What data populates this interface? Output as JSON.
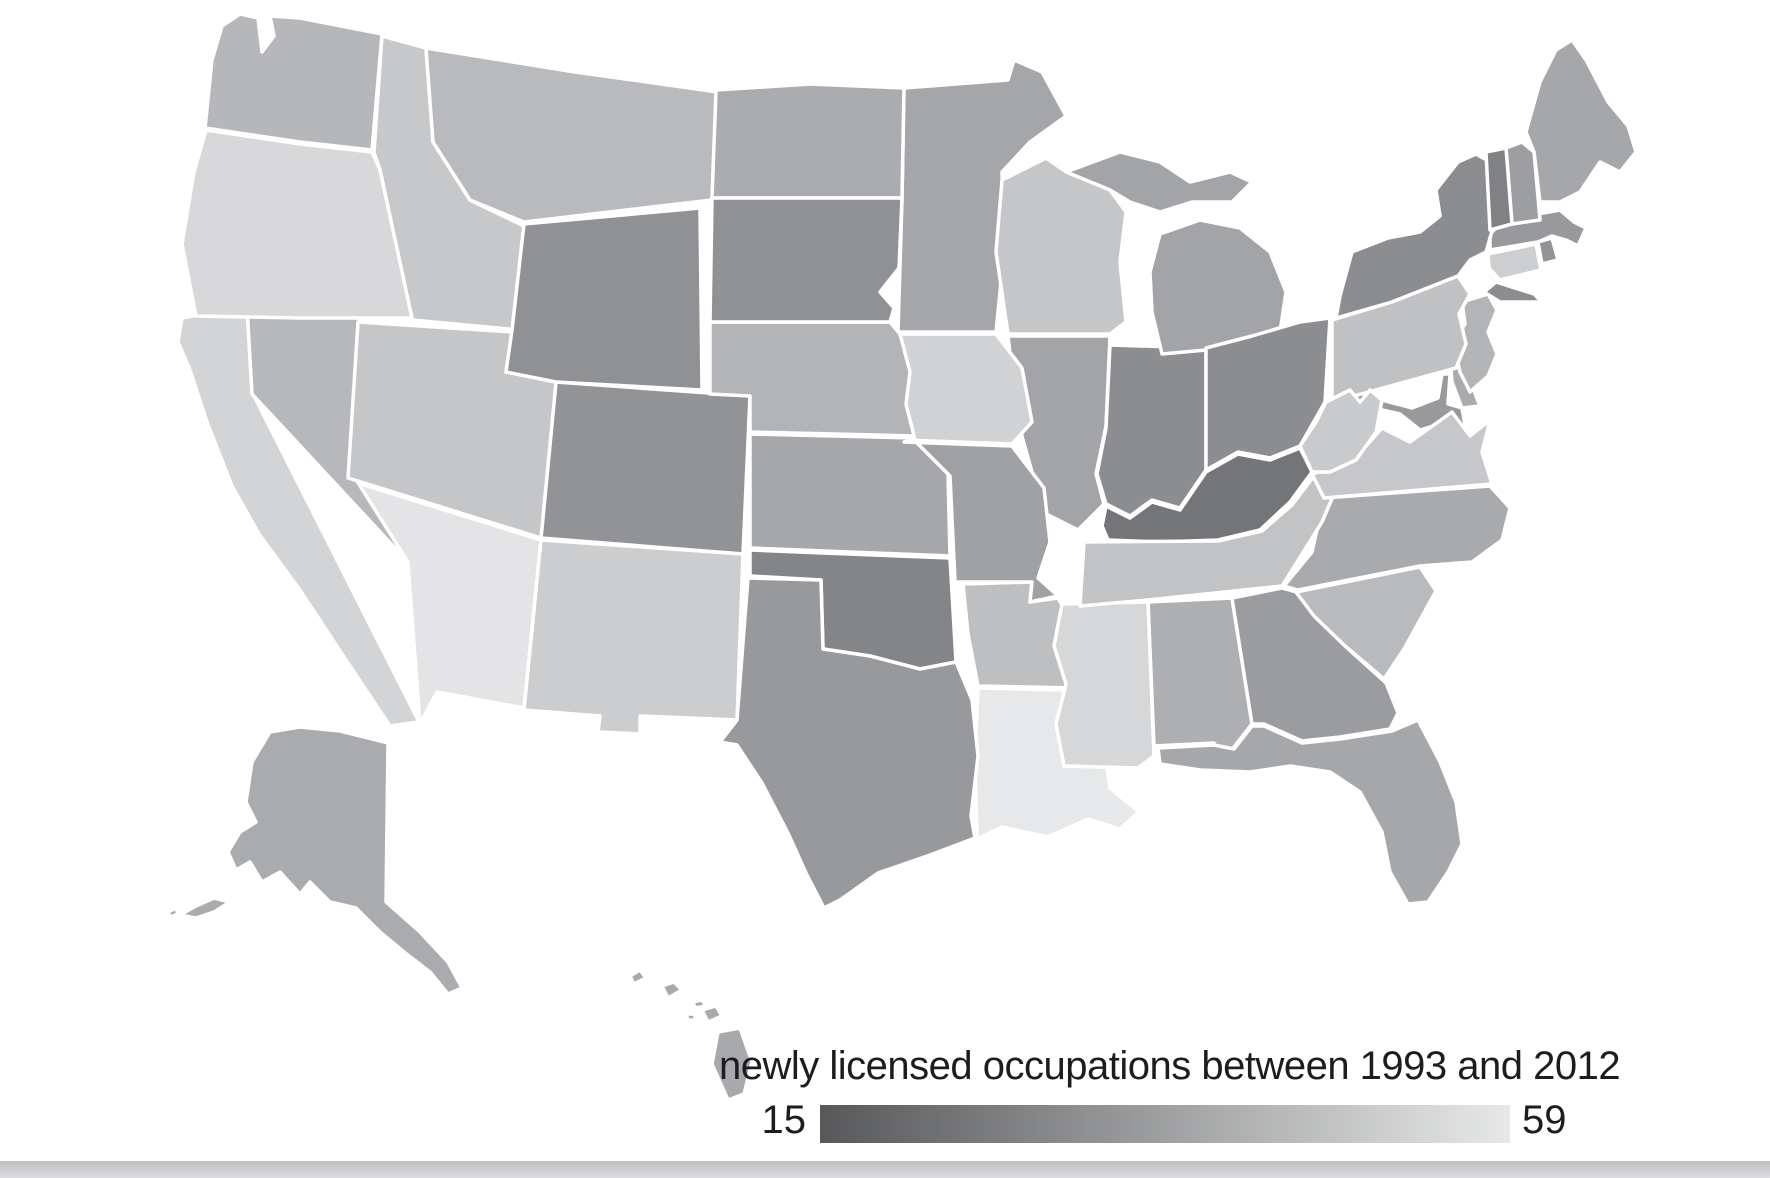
{
  "page": {
    "background": "#ffffff",
    "bottom_band_color": "#ebeced"
  },
  "legend": {
    "title": "newly licensed occupations between 1993 and 2012",
    "min_label": "15",
    "max_label": "59",
    "gradient_start": "#57585a",
    "gradient_end": "#e7e8e8"
  },
  "chart_data": {
    "type": "heatmap",
    "subtype": "choropleth-us-states",
    "title": "newly licensed occupations between 1993 and 2012",
    "color_scale": {
      "min_value": 15,
      "max_value": 59,
      "min_color": "#57585a",
      "max_color": "#e7e8e8",
      "orientation": "darker = fewer newly licensed occupations, lighter = more"
    },
    "legend_position": "bottom-center",
    "values_are_estimates_from_shading": true,
    "states": [
      {
        "id": "AL",
        "name": "Alabama",
        "fill": "#aeafb2",
        "value": 42
      },
      {
        "id": "AK",
        "name": "Alaska",
        "fill": "#a9abae",
        "value": 40
      },
      {
        "id": "AZ",
        "name": "Arizona",
        "fill": "#e4e4e6",
        "value": 58
      },
      {
        "id": "AR",
        "name": "Arkansas",
        "fill": "#bebfc1",
        "value": 47
      },
      {
        "id": "CA",
        "name": "California",
        "fill": "#d3d4d6",
        "value": 53
      },
      {
        "id": "CO",
        "name": "Colorado",
        "fill": "#919396",
        "value": 33
      },
      {
        "id": "CT",
        "name": "Connecticut",
        "fill": "#cdced0",
        "value": 51
      },
      {
        "id": "DE",
        "name": "Delaware",
        "fill": "#a9abae",
        "value": 40
      },
      {
        "id": "FL",
        "name": "Florida",
        "fill": "#a5a7aa",
        "value": 39
      },
      {
        "id": "GA",
        "name": "Georgia",
        "fill": "#9a9ca0",
        "value": 36
      },
      {
        "id": "HI",
        "name": "Hawaii",
        "fill": "#a7a9ac",
        "value": 40
      },
      {
        "id": "ID",
        "name": "Idaho",
        "fill": "#c7c8ca",
        "value": 49
      },
      {
        "id": "IL",
        "name": "Illinois",
        "fill": "#a2a4a7",
        "value": 38
      },
      {
        "id": "IN",
        "name": "Indiana",
        "fill": "#8b8d90",
        "value": 31
      },
      {
        "id": "IA",
        "name": "Iowa",
        "fill": "#d1d2d4",
        "value": 52
      },
      {
        "id": "KS",
        "name": "Kansas",
        "fill": "#a5a7aa",
        "value": 39
      },
      {
        "id": "KY",
        "name": "Kentucky",
        "fill": "#737578",
        "value": 24
      },
      {
        "id": "LA",
        "name": "Louisiana",
        "fill": "#e7e8e9",
        "value": 59
      },
      {
        "id": "ME",
        "name": "Maine",
        "fill": "#a5a7aa",
        "value": 39
      },
      {
        "id": "MD",
        "name": "Maryland",
        "fill": "#97999c",
        "value": 35
      },
      {
        "id": "MA",
        "name": "Massachusetts",
        "fill": "#97999c",
        "value": 35
      },
      {
        "id": "MI",
        "name": "Michigan",
        "fill": "#a2a4a7",
        "value": 38
      },
      {
        "id": "MN",
        "name": "Minnesota",
        "fill": "#a4a6a9",
        "value": 39
      },
      {
        "id": "MS",
        "name": "Mississippi",
        "fill": "#d6d7d8",
        "value": 54
      },
      {
        "id": "MO",
        "name": "Missouri",
        "fill": "#9fa1a4",
        "value": 37
      },
      {
        "id": "MT",
        "name": "Montana",
        "fill": "#b9babd",
        "value": 45
      },
      {
        "id": "NE",
        "name": "Nebraska",
        "fill": "#b3b4b7",
        "value": 43
      },
      {
        "id": "NV",
        "name": "Nevada",
        "fill": "#b7b8bb",
        "value": 44
      },
      {
        "id": "NH",
        "name": "New Hampshire",
        "fill": "#9c9ea1",
        "value": 36
      },
      {
        "id": "NJ",
        "name": "New Jersey",
        "fill": "#b2b4b6",
        "value": 43
      },
      {
        "id": "NM",
        "name": "New Mexico",
        "fill": "#cccdcf",
        "value": 51
      },
      {
        "id": "NY",
        "name": "New York",
        "fill": "#8b8d90",
        "value": 31
      },
      {
        "id": "NC",
        "name": "North Carolina",
        "fill": "#a8aaad",
        "value": 40
      },
      {
        "id": "ND",
        "name": "North Dakota",
        "fill": "#aaacaf",
        "value": 41
      },
      {
        "id": "OH",
        "name": "Ohio",
        "fill": "#8b8d90",
        "value": 31
      },
      {
        "id": "OK",
        "name": "Oklahoma",
        "fill": "#838588",
        "value": 29
      },
      {
        "id": "OR",
        "name": "Oregon",
        "fill": "#d8d8da",
        "value": 54
      },
      {
        "id": "PA",
        "name": "Pennsylvania",
        "fill": "#c0c1c3",
        "value": 47
      },
      {
        "id": "RI",
        "name": "Rhode Island",
        "fill": "#919396",
        "value": 33
      },
      {
        "id": "SC",
        "name": "South Carolina",
        "fill": "#b9babd",
        "value": 45
      },
      {
        "id": "SD",
        "name": "South Dakota",
        "fill": "#8f9194",
        "value": 32
      },
      {
        "id": "TN",
        "name": "Tennessee",
        "fill": "#c2c3c5",
        "value": 48
      },
      {
        "id": "TX",
        "name": "Texas",
        "fill": "#98999c",
        "value": 35
      },
      {
        "id": "UT",
        "name": "Utah",
        "fill": "#c5c6c8",
        "value": 49
      },
      {
        "id": "VT",
        "name": "Vermont",
        "fill": "#7f8184",
        "value": 27
      },
      {
        "id": "VA",
        "name": "Virginia",
        "fill": "#c6c7ca",
        "value": 49
      },
      {
        "id": "WA",
        "name": "Washington",
        "fill": "#b5b7ba",
        "value": 44
      },
      {
        "id": "WV",
        "name": "West Virginia",
        "fill": "#c9cacc",
        "value": 50
      },
      {
        "id": "WI",
        "name": "Wisconsin",
        "fill": "#c5c6c8",
        "value": 49
      },
      {
        "id": "WY",
        "name": "Wyoming",
        "fill": "#8f9194",
        "value": 32
      }
    ]
  }
}
